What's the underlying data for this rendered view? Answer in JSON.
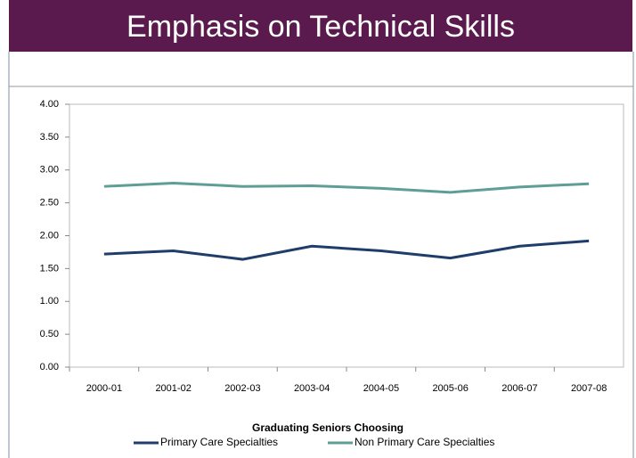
{
  "chart_data": {
    "type": "line",
    "title": "Emphasis on Technical Skills",
    "categories": [
      "2000-01",
      "2001-02",
      "2002-03",
      "2003-04",
      "2004-05",
      "2005-06",
      "2006-07",
      "2007-08"
    ],
    "series": [
      {
        "name": "Primary Care Specialties",
        "color": "#1f3d6b",
        "values": [
          1.72,
          1.77,
          1.64,
          1.84,
          1.77,
          1.66,
          1.84,
          1.92
        ]
      },
      {
        "name": "Non Primary Care Specialties",
        "color": "#5e9e96",
        "values": [
          2.75,
          2.8,
          2.75,
          2.76,
          2.72,
          2.66,
          2.74,
          2.79
        ]
      }
    ],
    "legend_title": "Graduating Seniors Choosing",
    "ylim": [
      0,
      4
    ],
    "yticks": [
      {
        "value": 0,
        "label": "0.00"
      },
      {
        "value": 0.5,
        "label": "0.50"
      },
      {
        "value": 1,
        "label": "1.00"
      },
      {
        "value": 1.5,
        "label": "1.50"
      },
      {
        "value": 2,
        "label": "2.00"
      },
      {
        "value": 2.5,
        "label": "2.50"
      },
      {
        "value": 3,
        "label": "3.00"
      },
      {
        "value": 3.5,
        "label": "3.50"
      },
      {
        "value": 4,
        "label": "4.00"
      }
    ],
    "grid": false,
    "legend": "bottom"
  }
}
